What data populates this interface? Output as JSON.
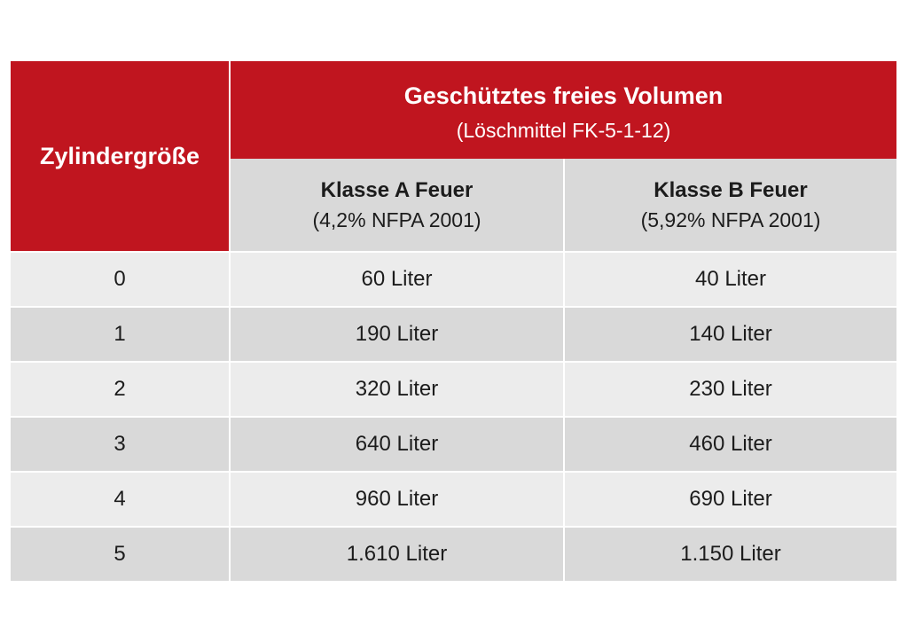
{
  "table": {
    "corner_header": "Zylindergröße",
    "group_header": {
      "title": "Geschütztes freies Volumen",
      "subtitle": "(Löschmittel FK-5-1-12)"
    },
    "columns": [
      {
        "title": "Klasse A Feuer",
        "note": "(4,2% NFPA 2001)"
      },
      {
        "title": "Klasse B Feuer",
        "note": "(5,92% NFPA 2001)"
      }
    ],
    "rows": [
      {
        "size": "0",
        "a": "60 Liter",
        "b": "40 Liter"
      },
      {
        "size": "1",
        "a": "190 Liter",
        "b": "140 Liter"
      },
      {
        "size": "2",
        "a": "320 Liter",
        "b": "230 Liter"
      },
      {
        "size": "3",
        "a": "640 Liter",
        "b": "460 Liter"
      },
      {
        "size": "4",
        "a": "960 Liter",
        "b": "690 Liter"
      },
      {
        "size": "5",
        "a": "1.610 Liter",
        "b": "1.150 Liter"
      }
    ],
    "colors": {
      "header_red": "#c0151f",
      "header_grey": "#d9d9d9",
      "row_light": "#ececec",
      "row_dark": "#d9d9d9"
    }
  }
}
